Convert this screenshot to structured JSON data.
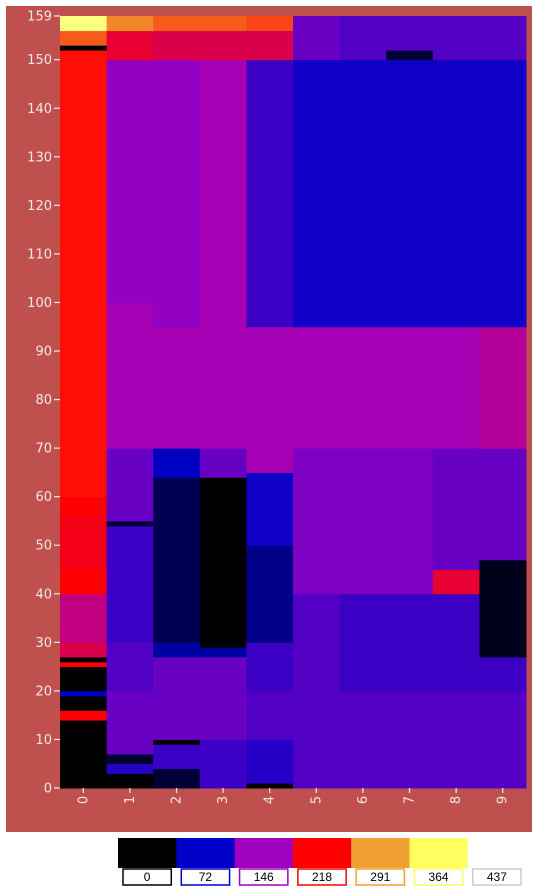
{
  "chart_data": {
    "type": "heatmap",
    "title": "",
    "xlabel": "",
    "ylabel": "",
    "x": [
      0,
      1,
      2,
      3,
      4,
      5,
      6,
      7,
      8,
      9
    ],
    "xlim": [
      -0.5,
      9.5
    ],
    "ylim": [
      0,
      159
    ],
    "y_ticks": [
      0,
      10,
      20,
      30,
      40,
      50,
      60,
      70,
      80,
      90,
      100,
      110,
      120,
      130,
      140,
      150,
      159
    ],
    "grid": false,
    "background_color": "#c0504d",
    "colorscale": {
      "colors": [
        "#000000",
        "#0000c8",
        "#a000c0",
        "#ff0000",
        "#f0a030",
        "#ffff60",
        "#ffffff"
      ],
      "labels": [
        "0",
        "72",
        "146",
        "218",
        "291",
        "364",
        "437"
      ],
      "min": 0,
      "max": 437
    },
    "columns": [
      {
        "x": 0,
        "segments": [
          [
            0,
            14,
            0
          ],
          [
            14,
            16,
            218
          ],
          [
            16,
            19,
            0
          ],
          [
            19,
            20,
            72
          ],
          [
            20,
            25,
            0
          ],
          [
            25,
            26,
            218
          ],
          [
            26,
            27,
            0
          ],
          [
            27,
            30,
            190
          ],
          [
            30,
            40,
            170
          ],
          [
            40,
            45,
            218
          ],
          [
            45,
            56,
            210
          ],
          [
            56,
            60,
            218
          ],
          [
            60,
            152,
            225
          ],
          [
            152,
            153,
            0
          ],
          [
            153,
            156,
            260
          ],
          [
            156,
            159,
            380
          ]
        ]
      },
      {
        "x": 1,
        "segments": [
          [
            0,
            3,
            0
          ],
          [
            3,
            5,
            90
          ],
          [
            5,
            7,
            20
          ],
          [
            7,
            20,
            120
          ],
          [
            20,
            30,
            110
          ],
          [
            30,
            54,
            100
          ],
          [
            54,
            55,
            20
          ],
          [
            55,
            70,
            120
          ],
          [
            70,
            100,
            150
          ],
          [
            100,
            150,
            140
          ],
          [
            150,
            156,
            200
          ],
          [
            156,
            159,
            280
          ]
        ]
      },
      {
        "x": 2,
        "segments": [
          [
            0,
            4,
            20
          ],
          [
            4,
            9,
            100
          ],
          [
            9,
            10,
            0
          ],
          [
            10,
            27,
            120
          ],
          [
            27,
            30,
            60
          ],
          [
            30,
            64,
            30
          ],
          [
            64,
            70,
            70
          ],
          [
            70,
            95,
            150
          ],
          [
            95,
            150,
            140
          ],
          [
            150,
            156,
            190
          ],
          [
            156,
            159,
            260
          ]
        ]
      },
      {
        "x": 3,
        "segments": [
          [
            0,
            10,
            100
          ],
          [
            10,
            27,
            120
          ],
          [
            27,
            29,
            60
          ],
          [
            29,
            64,
            0
          ],
          [
            64,
            70,
            120
          ],
          [
            70,
            95,
            150
          ],
          [
            95,
            150,
            150
          ],
          [
            150,
            156,
            190
          ],
          [
            156,
            159,
            260
          ]
        ]
      },
      {
        "x": 4,
        "segments": [
          [
            0,
            1,
            0
          ],
          [
            1,
            10,
            90
          ],
          [
            10,
            20,
            110
          ],
          [
            20,
            30,
            100
          ],
          [
            30,
            50,
            50
          ],
          [
            50,
            65,
            80
          ],
          [
            65,
            95,
            150
          ],
          [
            95,
            150,
            100
          ],
          [
            150,
            156,
            190
          ],
          [
            156,
            159,
            250
          ]
        ]
      },
      {
        "x": 5,
        "segments": [
          [
            0,
            20,
            110
          ],
          [
            20,
            40,
            110
          ],
          [
            40,
            70,
            130
          ],
          [
            70,
            95,
            150
          ],
          [
            95,
            150,
            80
          ],
          [
            150,
            159,
            120
          ]
        ]
      },
      {
        "x": 6,
        "segments": [
          [
            0,
            20,
            110
          ],
          [
            20,
            40,
            100
          ],
          [
            40,
            70,
            130
          ],
          [
            70,
            95,
            150
          ],
          [
            95,
            150,
            80
          ],
          [
            150,
            159,
            110
          ]
        ]
      },
      {
        "x": 7,
        "segments": [
          [
            0,
            20,
            110
          ],
          [
            20,
            40,
            100
          ],
          [
            40,
            70,
            130
          ],
          [
            70,
            95,
            150
          ],
          [
            95,
            150,
            80
          ],
          [
            150,
            152,
            20
          ],
          [
            152,
            159,
            110
          ]
        ]
      },
      {
        "x": 8,
        "segments": [
          [
            0,
            20,
            110
          ],
          [
            20,
            40,
            100
          ],
          [
            40,
            45,
            200
          ],
          [
            45,
            70,
            120
          ],
          [
            70,
            95,
            150
          ],
          [
            95,
            150,
            80
          ],
          [
            150,
            159,
            110
          ]
        ]
      },
      {
        "x": 9,
        "segments": [
          [
            0,
            20,
            110
          ],
          [
            20,
            27,
            100
          ],
          [
            27,
            47,
            10
          ],
          [
            47,
            70,
            120
          ],
          [
            70,
            95,
            160
          ],
          [
            95,
            150,
            80
          ],
          [
            150,
            159,
            110
          ]
        ]
      }
    ]
  }
}
